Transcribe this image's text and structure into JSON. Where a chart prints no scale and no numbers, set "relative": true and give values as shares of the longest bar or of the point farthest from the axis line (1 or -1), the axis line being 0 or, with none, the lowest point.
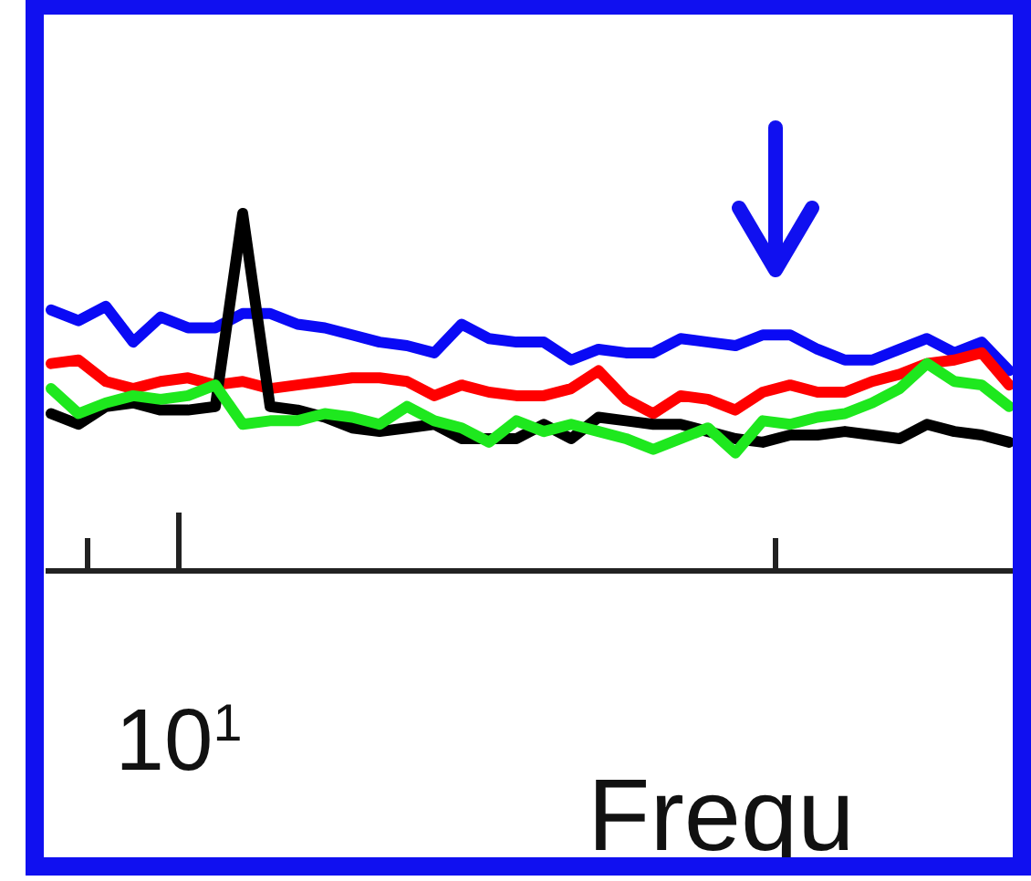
{
  "chart_data": {
    "type": "line",
    "xlabel": "Frequ",
    "relative": true,
    "annotations": [
      "10$^{1}$"
    ],
    "categories": [
      null,
      null,
      null,
      null,
      null,
      null,
      null,
      null,
      null,
      null,
      null,
      null,
      null,
      null,
      null,
      null,
      null,
      null,
      null,
      null,
      null,
      null,
      null,
      null,
      null,
      null,
      null,
      null,
      null,
      null,
      null,
      null,
      null,
      null,
      null,
      null
    ],
    "series": [
      {
        "color": "#0a0af5",
        "values": [
          0.73,
          0.7,
          0.74,
          0.64,
          0.71,
          0.68,
          0.68,
          0.72,
          0.72,
          0.69,
          0.68,
          0.66,
          0.64,
          0.63,
          0.61,
          0.69,
          0.65,
          0.64,
          0.64,
          0.59,
          0.62,
          0.61,
          0.61,
          0.65,
          0.64,
          0.63,
          0.66,
          0.66,
          0.62,
          0.59,
          0.59,
          0.62,
          0.65,
          0.61,
          0.64,
          0.56
        ]
      },
      {
        "color": "#ff0000",
        "values": [
          0.58,
          0.59,
          0.53,
          0.51,
          0.53,
          0.54,
          0.52,
          0.53,
          0.51,
          0.52,
          0.53,
          0.54,
          0.54,
          0.53,
          0.49,
          0.52,
          0.5,
          0.49,
          0.49,
          0.51,
          0.56,
          0.48,
          0.44,
          0.49,
          0.48,
          0.45,
          0.5,
          0.52,
          0.5,
          0.5,
          0.53,
          0.55,
          0.58,
          0.59,
          0.61,
          0.52
        ]
      },
      {
        "color": "#000000",
        "values": [
          0.44,
          0.41,
          0.46,
          0.47,
          0.45,
          0.45,
          0.46,
          1,
          0.46,
          0.45,
          0.43,
          0.4,
          0.39,
          0.4,
          0.41,
          0.37,
          0.37,
          0.37,
          0.41,
          0.37,
          0.43,
          0.42,
          0.41,
          0.41,
          0.39,
          0.37,
          0.36,
          0.38,
          0.38,
          0.39,
          0.38,
          0.37,
          0.41,
          0.39,
          0.38,
          0.36
        ]
      },
      {
        "color": "#1ee81e",
        "values": [
          0.51,
          0.44,
          0.47,
          0.49,
          0.48,
          0.49,
          0.52,
          0.41,
          0.42,
          0.42,
          0.44,
          0.43,
          0.41,
          0.46,
          0.42,
          0.4,
          0.36,
          0.42,
          0.39,
          0.41,
          0.39,
          0.37,
          0.34,
          0.37,
          0.4,
          0.33,
          0.42,
          0.41,
          0.43,
          0.44,
          0.47,
          0.51,
          0.58,
          0.53,
          0.52,
          0.46
        ]
      }
    ]
  }
}
